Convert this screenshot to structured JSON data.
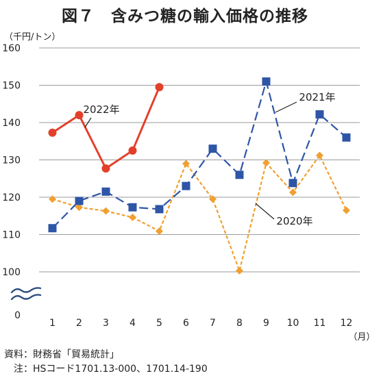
{
  "chart_data": {
    "type": "line",
    "title": "図７　含みつ糖の輸入価格の推移",
    "ylabel": "（千円/トン）",
    "xlabel": "（月）",
    "x": [
      1,
      2,
      3,
      4,
      5,
      6,
      7,
      8,
      9,
      10,
      11,
      12
    ],
    "y_ticks": [
      0,
      100,
      110,
      120,
      130,
      140,
      150,
      160
    ],
    "ylim": [
      100,
      160
    ],
    "y_axis_break": true,
    "grid": true,
    "series": [
      {
        "name": "2022年",
        "color": "#e2402a",
        "marker": "circle",
        "line_style": "solid",
        "values": [
          137.3,
          142.0,
          127.7,
          132.5,
          149.5,
          null,
          null,
          null,
          null,
          null,
          null,
          null
        ]
      },
      {
        "name": "2021年",
        "color": "#2e55a6",
        "marker": "square",
        "line_style": "dashed",
        "values": [
          111.7,
          119.0,
          121.5,
          117.3,
          116.8,
          123.0,
          133.0,
          126.0,
          151.0,
          123.8,
          142.2,
          136.0
        ]
      },
      {
        "name": "2020年",
        "color": "#f0a030",
        "marker": "diamond",
        "line_style": "dotted",
        "values": [
          119.5,
          117.3,
          116.3,
          114.6,
          110.9,
          129.0,
          119.5,
          100.3,
          129.2,
          121.3,
          131.2,
          116.5
        ]
      }
    ]
  },
  "notes": {
    "source": "資料：財務省「貿易統計」",
    "note": "　注：HSコード1701.13-000、1701.14-190"
  }
}
